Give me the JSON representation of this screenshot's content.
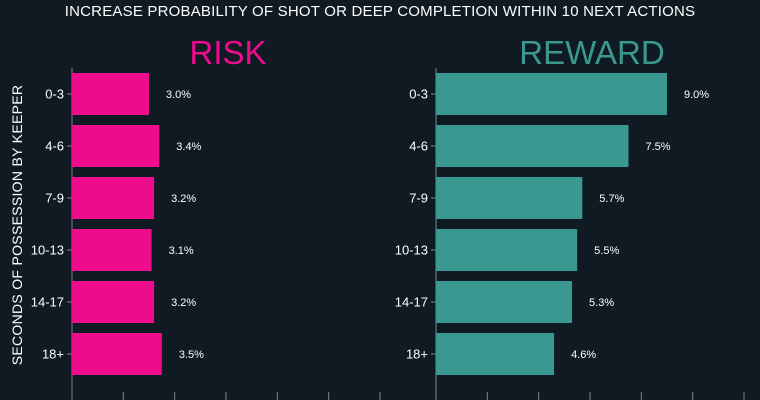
{
  "title": "INCREASE PROBABILITY OF SHOT OR DEEP COMPLETION WITHIN 10 NEXT ACTIONS",
  "ylabel": "SECONDS OF POSSESSION BY KEEPER",
  "colors": {
    "background": "#0f1a22",
    "risk": "#ee0b8c",
    "reward": "#3a9890",
    "text": "#ffffff",
    "axis": "#7d858b"
  },
  "chart_data": [
    {
      "type": "bar",
      "orientation": "horizontal",
      "title": "RISK",
      "categories": [
        "0-3",
        "4-6",
        "7-9",
        "10-13",
        "14-17",
        "18+"
      ],
      "values": [
        3.0,
        3.4,
        3.2,
        3.1,
        3.2,
        3.5
      ],
      "value_labels": [
        "3.0%",
        "3.4%",
        "3.2%",
        "3.1%",
        "3.2%",
        "3.5%"
      ],
      "color": "#ee0b8c",
      "xlim": [
        0,
        12
      ]
    },
    {
      "type": "bar",
      "orientation": "horizontal",
      "title": "REWARD",
      "categories": [
        "0-3",
        "4-6",
        "7-9",
        "10-13",
        "14-17",
        "18+"
      ],
      "values": [
        9.0,
        7.5,
        5.7,
        5.5,
        5.3,
        4.6
      ],
      "value_labels": [
        "9.0%",
        "7.5%",
        "5.7%",
        "5.5%",
        "5.3%",
        "4.6%"
      ],
      "color": "#3a9890",
      "xlim": [
        0,
        12
      ]
    }
  ]
}
